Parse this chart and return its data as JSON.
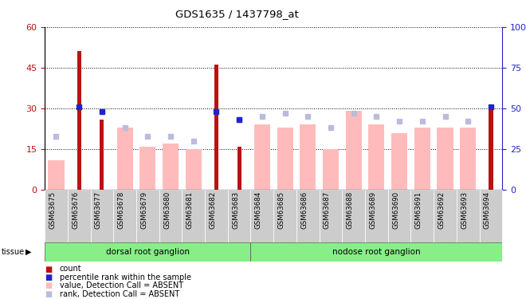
{
  "title": "GDS1635 / 1437798_at",
  "samples": [
    "GSM63675",
    "GSM63676",
    "GSM63677",
    "GSM63678",
    "GSM63679",
    "GSM63680",
    "GSM63681",
    "GSM63682",
    "GSM63683",
    "GSM63684",
    "GSM63685",
    "GSM63686",
    "GSM63687",
    "GSM63688",
    "GSM63689",
    "GSM63690",
    "GSM63691",
    "GSM63692",
    "GSM63693",
    "GSM63694"
  ],
  "count_values": [
    0,
    51,
    26,
    0,
    0,
    0,
    0,
    46,
    16,
    0,
    0,
    0,
    0,
    0,
    0,
    0,
    0,
    0,
    0,
    31
  ],
  "value_absent": [
    11,
    0,
    0,
    23,
    16,
    17,
    15,
    0,
    0,
    24,
    23,
    24,
    15,
    29,
    24,
    21,
    23,
    23,
    23,
    0
  ],
  "rank_percent_values": [
    0,
    51,
    48,
    0,
    0,
    0,
    0,
    48,
    43,
    0,
    0,
    0,
    0,
    0,
    0,
    0,
    0,
    0,
    0,
    51
  ],
  "rank_absent_percent": [
    33,
    0,
    0,
    38,
    33,
    33,
    30,
    0,
    43,
    45,
    47,
    45,
    38,
    47,
    45,
    42,
    42,
    45,
    42,
    0
  ],
  "tissue_groups": [
    {
      "label": "dorsal root ganglion",
      "start": 0,
      "end": 8
    },
    {
      "label": "nodose root ganglion",
      "start": 9,
      "end": 19
    }
  ],
  "ylim_left": [
    0,
    60
  ],
  "ylim_right": [
    0,
    100
  ],
  "yticks_left": [
    0,
    15,
    30,
    45,
    60
  ],
  "yticks_right": [
    0,
    25,
    50,
    75,
    100
  ],
  "color_count": "#bb1111",
  "color_rank": "#2222cc",
  "color_value_absent": "#ffbbbb",
  "color_rank_absent": "#bbbbdd",
  "tissue_color": "#88ee88",
  "xtick_bg": "#cccccc"
}
